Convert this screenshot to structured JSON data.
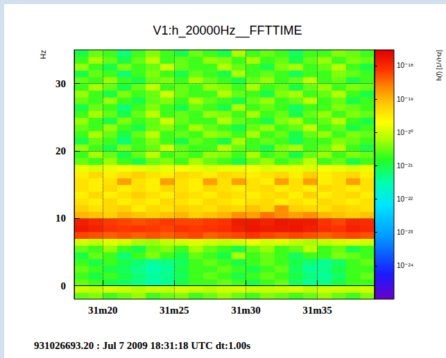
{
  "chart_data": {
    "type": "heatmap",
    "title": "V1:h_20000Hz__FFTTIME",
    "subtitle": "931026693.20 : Jul 7 2009 18:31:18 UTC dt:1.00s",
    "y_label": "Hz",
    "grid": true,
    "xlim": [
      18,
      39
    ],
    "ylim": [
      -2,
      35
    ],
    "xticks": [
      {
        "value": 20,
        "label": "31m20"
      },
      {
        "value": 25,
        "label": "31m25"
      },
      {
        "value": 30,
        "label": "31m30"
      },
      {
        "value": 35,
        "label": "31m35"
      }
    ],
    "yticks": [
      0,
      10,
      20,
      30
    ],
    "x_edges": [
      18,
      19,
      20,
      21,
      22,
      23,
      24,
      25,
      26,
      27,
      28,
      29,
      30,
      31,
      32,
      33,
      34,
      35,
      36,
      37,
      38,
      39
    ],
    "y_edges": [
      -2,
      -1,
      0,
      1,
      2,
      3,
      4,
      5,
      6,
      7,
      8,
      9,
      10,
      11,
      12,
      13,
      14,
      15,
      16,
      17,
      18,
      19,
      20,
      21,
      22,
      23,
      24,
      25,
      26,
      27,
      28,
      29,
      30,
      31,
      32,
      33,
      34,
      35
    ],
    "z": [
      [
        3e-21,
        4e-21,
        2e-21,
        3e-21,
        5e-21,
        2e-21,
        3e-21,
        4e-21,
        2e-21,
        3e-21,
        5e-21,
        3e-21,
        2e-21,
        4e-21,
        3e-21,
        2e-21,
        3e-21,
        5e-21,
        3e-21,
        2e-21,
        4e-21
      ],
      [
        1e-20,
        8e-21,
        1.2e-20,
        1e-20,
        7e-21,
        1e-20,
        9e-21,
        1.2e-20,
        1e-20,
        8e-21,
        1e-20,
        1.1e-20,
        1e-20,
        9e-21,
        1e-20,
        1.2e-20,
        8e-21,
        1e-20,
        1e-20,
        9e-21,
        1e-20
      ],
      [
        3e-21,
        2e-21,
        1e-21,
        8e-22,
        5e-22,
        3e-22,
        4e-22,
        1e-21,
        2e-21,
        2e-21,
        3e-21,
        2e-21,
        1e-21,
        2e-21,
        3e-21,
        8e-22,
        4e-22,
        5e-22,
        1e-21,
        2e-21,
        2e-21
      ],
      [
        2e-21,
        1e-21,
        2e-21,
        1e-21,
        6e-22,
        4e-22,
        5e-22,
        8e-22,
        2e-21,
        3e-21,
        2e-21,
        1e-21,
        2e-21,
        3e-21,
        2e-21,
        1e-21,
        6e-22,
        4e-22,
        7e-22,
        2e-21,
        3e-21
      ],
      [
        3e-21,
        2e-21,
        1e-21,
        8e-22,
        5e-22,
        3e-22,
        4e-22,
        1e-21,
        2e-21,
        2e-21,
        3e-21,
        2e-21,
        1e-21,
        2e-21,
        3e-21,
        8e-22,
        4e-22,
        5e-22,
        1e-21,
        2e-21,
        2e-21
      ],
      [
        2e-21,
        1e-21,
        2e-21,
        1e-21,
        6e-22,
        4e-22,
        5e-22,
        8e-22,
        2e-21,
        3e-21,
        2e-21,
        1e-21,
        2e-21,
        3e-21,
        2e-21,
        1e-21,
        6e-22,
        4e-22,
        7e-22,
        2e-21,
        3e-21
      ],
      [
        1e-21,
        3e-21,
        2e-21,
        6e-22,
        2e-21,
        4e-21,
        2e-21,
        1e-21,
        3e-21,
        2e-21,
        1e-21,
        6e-21,
        2e-21,
        3e-21,
        2e-21,
        8e-22,
        2e-21,
        2e-21,
        4e-21,
        3e-21,
        2e-21
      ],
      [
        3e-21,
        2e-21,
        5e-21,
        2e-21,
        1e-21,
        3e-21,
        4e-21,
        2e-21,
        6e-21,
        3e-21,
        2e-21,
        1e-21,
        3e-21,
        5e-21,
        2e-21,
        3e-21,
        8e-21,
        2e-21,
        3e-21,
        1e-21,
        2e-21
      ],
      [
        1e-20,
        8e-21,
        1.2e-20,
        1e-20,
        6e-21,
        5e-21,
        8e-21,
        1e-20,
        1.2e-20,
        1e-20,
        8e-21,
        1e-20,
        1.5e-20,
        1e-20,
        1.2e-20,
        8e-21,
        6e-21,
        8e-21,
        1e-20,
        1.2e-20,
        1e-20
      ],
      [
        6e-19,
        5e-19,
        4e-19,
        5e-19,
        4e-19,
        5e-19,
        4e-19,
        5e-19,
        6e-19,
        4e-19,
        5e-19,
        6e-19,
        8e-19,
        6e-19,
        5e-19,
        6e-19,
        5e-19,
        4e-19,
        5e-19,
        6e-19,
        5e-19
      ],
      [
        1.5e-18,
        1.2e-18,
        8e-19,
        7e-19,
        8e-19,
        7e-19,
        6e-19,
        8e-19,
        7e-19,
        8e-19,
        9e-19,
        1.3e-18,
        1.6e-18,
        1.4e-18,
        1.5e-18,
        1.6e-18,
        1.3e-18,
        9e-19,
        8e-19,
        1.2e-18,
        1e-18
      ],
      [
        1.3e-18,
        1e-18,
        7e-19,
        6e-19,
        5e-19,
        6e-19,
        7e-19,
        6e-19,
        6e-19,
        7e-19,
        8e-19,
        1.4e-18,
        1.5e-18,
        1.2e-18,
        1.6e-18,
        1.5e-18,
        1.4e-18,
        8e-19,
        6e-19,
        1e-18,
        9e-19
      ],
      [
        1e-19,
        8e-20,
        6e-20,
        1e-19,
        8e-20,
        6e-20,
        8e-20,
        1e-19,
        6e-20,
        8e-20,
        1e-19,
        2e-19,
        1.5e-19,
        3e-19,
        2e-19,
        1.5e-19,
        2e-19,
        1e-19,
        8e-20,
        6e-20,
        8e-20
      ],
      [
        6e-20,
        4e-20,
        5e-20,
        6e-20,
        3e-20,
        5e-20,
        4e-20,
        6e-20,
        5e-20,
        4e-20,
        6e-20,
        5e-20,
        8e-20,
        5e-20,
        2e-19,
        6e-20,
        5e-20,
        4e-20,
        6e-20,
        5e-20,
        4e-20
      ],
      [
        4e-20,
        3e-20,
        5e-20,
        3e-20,
        4e-20,
        3e-20,
        5e-20,
        4e-20,
        3e-20,
        5e-20,
        4e-20,
        3e-20,
        4e-20,
        5e-20,
        3e-20,
        4e-20,
        3e-20,
        5e-20,
        4e-20,
        3e-20,
        4e-20
      ],
      [
        3e-20,
        5e-20,
        3e-20,
        4e-20,
        6e-20,
        4e-20,
        3e-20,
        5e-20,
        4e-20,
        3e-20,
        5e-20,
        4e-20,
        3e-20,
        4e-20,
        5e-20,
        3e-20,
        6e-20,
        3e-20,
        4e-20,
        5e-20,
        3e-20
      ],
      [
        4e-20,
        3e-20,
        5e-20,
        3e-20,
        4e-20,
        3e-20,
        5e-20,
        4e-20,
        3e-20,
        5e-20,
        4e-20,
        3e-20,
        4e-20,
        5e-20,
        3e-20,
        4e-20,
        3e-20,
        5e-20,
        4e-20,
        3e-20,
        4e-20
      ],
      [
        4e-20,
        3e-20,
        4e-20,
        1.5e-19,
        4e-20,
        3e-20,
        1.5e-19,
        4e-20,
        3e-20,
        1.5e-19,
        4e-20,
        1.5e-19,
        4e-20,
        3e-20,
        1.5e-19,
        4e-20,
        1.5e-19,
        3e-20,
        4e-20,
        1.5e-19,
        4e-20
      ],
      [
        3e-20,
        5e-20,
        3e-20,
        4e-20,
        6e-20,
        4e-20,
        3e-20,
        5e-20,
        4e-20,
        3e-20,
        5e-20,
        4e-20,
        3e-20,
        4e-20,
        5e-20,
        3e-20,
        6e-20,
        3e-20,
        4e-20,
        5e-20,
        3e-20
      ],
      [
        1.5e-20,
        1.2e-20,
        1.5e-20,
        1.8e-20,
        1.5e-20,
        1.2e-20,
        1.5e-20,
        1.8e-20,
        1.5e-20,
        1.2e-20,
        1.5e-20,
        1.5e-20,
        1.8e-20,
        1.2e-20,
        1.5e-20,
        1.5e-20,
        1.2e-20,
        1.8e-20,
        1.5e-20,
        1.2e-20,
        1.5e-20
      ],
      [
        3e-21,
        2e-21,
        5e-21,
        2e-21,
        1e-21,
        3e-21,
        4e-21,
        2e-21,
        6e-21,
        3e-21,
        2e-21,
        1e-21,
        3e-21,
        5e-21,
        2e-21,
        3e-21,
        8e-21,
        2e-21,
        3e-21,
        1e-21,
        2e-21
      ],
      [
        2e-21,
        6e-21,
        3e-21,
        1e-21,
        3e-21,
        8e-21,
        2e-21,
        3e-21,
        2e-21,
        5e-21,
        4e-21,
        2e-21,
        6e-21,
        2e-21,
        3e-21,
        1e-21,
        3e-21,
        5e-21,
        2e-21,
        4e-21,
        3e-21
      ],
      [
        5e-21,
        2e-21,
        1e-21,
        4e-21,
        2e-21,
        3e-21,
        1e-20,
        3e-21,
        2e-21,
        2e-21,
        7e-21,
        3e-21,
        2e-21,
        1e-21,
        4e-21,
        6e-21,
        2e-21,
        3e-21,
        7e-21,
        2e-21,
        1e-21
      ],
      [
        1e-21,
        3e-21,
        2e-21,
        6e-22,
        2e-21,
        4e-21,
        2e-21,
        1e-21,
        3e-21,
        2e-21,
        1e-21,
        6e-21,
        2e-21,
        3e-21,
        2e-21,
        8e-22,
        2e-21,
        2e-21,
        4e-21,
        3e-21,
        2e-21
      ],
      [
        2e-21,
        6e-21,
        3e-21,
        1e-21,
        3e-21,
        8e-21,
        2e-21,
        3e-21,
        2e-21,
        5e-21,
        4e-21,
        2e-21,
        6e-21,
        2e-21,
        3e-21,
        1e-21,
        3e-21,
        5e-21,
        2e-21,
        4e-21,
        3e-21
      ],
      [
        3e-21,
        2e-21,
        5e-21,
        2e-21,
        1e-21,
        3e-21,
        4e-21,
        2e-21,
        6e-21,
        3e-21,
        2e-21,
        1e-21,
        3e-21,
        5e-21,
        2e-21,
        3e-21,
        8e-21,
        2e-21,
        3e-21,
        1e-21,
        2e-21
      ],
      [
        5e-21,
        2e-21,
        1e-21,
        4e-21,
        2e-21,
        3e-21,
        1e-20,
        3e-21,
        2e-21,
        2e-21,
        7e-21,
        3e-21,
        2e-21,
        1e-21,
        4e-21,
        6e-21,
        2e-21,
        3e-21,
        7e-21,
        2e-21,
        1e-21
      ],
      [
        2e-21,
        6e-21,
        3e-21,
        1e-21,
        3e-21,
        8e-21,
        2e-21,
        3e-21,
        2e-21,
        5e-21,
        4e-21,
        2e-21,
        6e-21,
        2e-21,
        3e-21,
        1e-21,
        3e-21,
        5e-21,
        2e-21,
        4e-21,
        3e-21
      ],
      [
        1e-21,
        3e-21,
        2e-21,
        6e-22,
        2e-21,
        4e-21,
        2e-21,
        1e-21,
        3e-21,
        2e-21,
        1e-21,
        6e-21,
        2e-21,
        3e-21,
        2e-21,
        8e-22,
        2e-21,
        2e-21,
        4e-21,
        3e-21,
        2e-21
      ],
      [
        3e-21,
        2e-21,
        5e-21,
        2e-21,
        1e-21,
        3e-21,
        4e-21,
        2e-21,
        6e-21,
        3e-21,
        2e-21,
        1e-21,
        3e-21,
        5e-21,
        2e-21,
        3e-21,
        8e-21,
        2e-21,
        3e-21,
        1e-21,
        2e-21
      ],
      [
        5e-21,
        2e-21,
        1e-21,
        4e-21,
        2e-21,
        3e-21,
        1e-20,
        3e-21,
        2e-21,
        2e-21,
        7e-21,
        3e-21,
        2e-21,
        1e-21,
        4e-21,
        6e-21,
        2e-21,
        3e-21,
        7e-21,
        2e-21,
        1e-21
      ],
      [
        2e-21,
        6e-21,
        3e-21,
        1e-21,
        3e-21,
        8e-21,
        2e-21,
        3e-21,
        2e-21,
        5e-21,
        4e-21,
        2e-21,
        6e-21,
        2e-21,
        3e-21,
        1e-21,
        3e-21,
        5e-21,
        2e-21,
        4e-21,
        3e-21
      ],
      [
        3e-21,
        2e-21,
        5e-21,
        2e-21,
        1e-21,
        3e-21,
        4e-21,
        2e-21,
        6e-21,
        3e-21,
        2e-21,
        1e-21,
        3e-21,
        5e-21,
        2e-21,
        3e-21,
        8e-21,
        2e-21,
        3e-21,
        1e-21,
        2e-21
      ],
      [
        1e-21,
        3e-21,
        2e-21,
        6e-22,
        2e-21,
        4e-21,
        2e-21,
        1e-21,
        3e-21,
        2e-21,
        1e-21,
        6e-21,
        2e-21,
        3e-21,
        2e-21,
        8e-22,
        2e-21,
        2e-21,
        4e-21,
        3e-21,
        2e-21
      ],
      [
        5e-21,
        2e-21,
        1e-21,
        4e-21,
        2e-21,
        3e-21,
        1e-20,
        3e-21,
        2e-21,
        2e-21,
        7e-21,
        3e-21,
        2e-21,
        1e-21,
        4e-21,
        6e-21,
        2e-21,
        3e-21,
        7e-21,
        2e-21,
        1e-21
      ],
      [
        2e-21,
        6e-21,
        3e-21,
        1e-21,
        3e-21,
        8e-21,
        2e-21,
        3e-21,
        2e-21,
        5e-21,
        4e-21,
        2e-21,
        6e-21,
        2e-21,
        3e-21,
        1e-21,
        3e-21,
        5e-21,
        2e-21,
        4e-21,
        3e-21
      ],
      [
        1e-21,
        3e-21,
        2e-21,
        6e-22,
        2e-21,
        4e-21,
        2e-21,
        1e-21,
        3e-21,
        2e-21,
        1e-21,
        6e-21,
        2e-21,
        3e-21,
        2e-21,
        8e-22,
        2e-21,
        2e-21,
        4e-21,
        3e-21,
        2e-21
      ]
    ],
    "colorbar": {
      "label": "h(f) [1/√Hz]",
      "log": true,
      "range": [
        1e-25,
        3e-18
      ],
      "ticks": [
        {
          "value": 1e-24,
          "label": "10⁻²⁴"
        },
        {
          "value": 1e-23,
          "label": "10⁻²³"
        },
        {
          "value": 1e-22,
          "label": "10⁻²²"
        },
        {
          "value": 1e-21,
          "label": "10⁻²¹"
        },
        {
          "value": 1e-20,
          "label": "10⁻²⁰"
        },
        {
          "value": 1e-19,
          "label": "10⁻¹⁹"
        },
        {
          "value": 1e-18,
          "label": "10⁻¹⁸"
        }
      ]
    }
  }
}
